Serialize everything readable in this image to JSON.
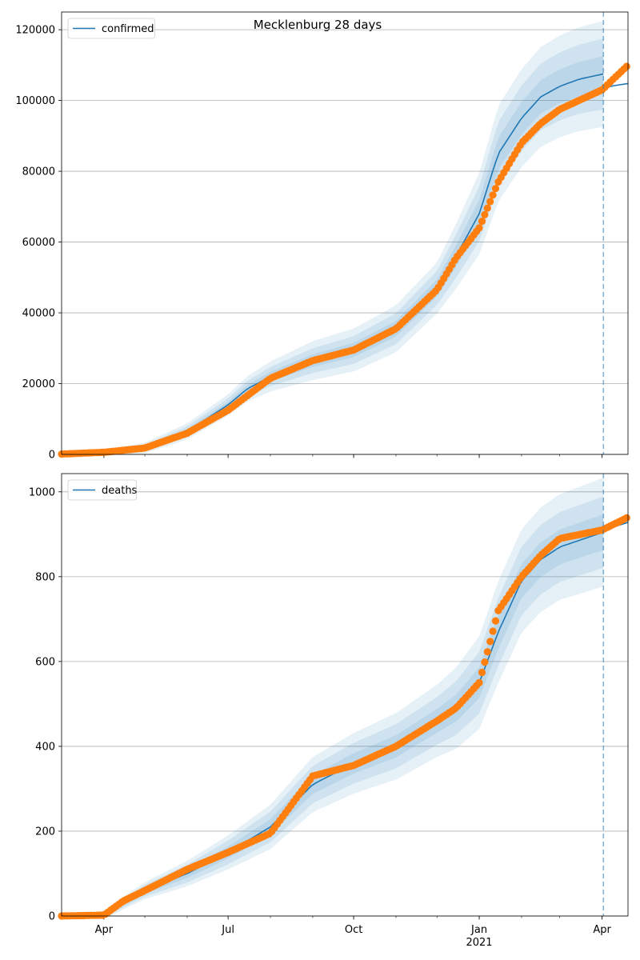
{
  "figure": {
    "title": "Mecklenburg 28 days"
  },
  "colors": {
    "model": "#1f77b4",
    "observed": "#ff7f0e",
    "band": "#1f77b4",
    "grid": "#b0b0b0"
  },
  "x_axis": {
    "start": "2020-03-01",
    "end": "2021-04-20",
    "ticks": [
      {
        "date": "2020-04-01",
        "label": "Apr",
        "sublabel": ""
      },
      {
        "date": "2020-07-01",
        "label": "Jul",
        "sublabel": ""
      },
      {
        "date": "2020-10-01",
        "label": "Oct",
        "sublabel": ""
      },
      {
        "date": "2021-01-01",
        "label": "Jan",
        "sublabel": "2021"
      },
      {
        "date": "2021-04-01",
        "label": "Apr",
        "sublabel": ""
      }
    ],
    "forecast_start": "2021-04-02"
  },
  "chart_data": [
    {
      "type": "line",
      "legend": "confirmed",
      "legend_position": "top-left",
      "grid": "horizontal",
      "ylim": [
        0,
        125000
      ],
      "yticks": [
        0,
        20000,
        40000,
        60000,
        80000,
        100000,
        120000
      ],
      "model": {
        "name": "confirmed",
        "x": [
          "2020-03-01",
          "2020-04-01",
          "2020-05-01",
          "2020-06-01",
          "2020-07-01",
          "2020-07-15",
          "2020-08-01",
          "2020-09-01",
          "2020-10-01",
          "2020-11-01",
          "2020-12-01",
          "2020-12-15",
          "2021-01-01",
          "2021-01-15",
          "2021-02-01",
          "2021-02-15",
          "2021-03-01",
          "2021-03-15",
          "2021-04-02",
          "2021-04-20"
        ],
        "y": [
          100,
          500,
          1800,
          6500,
          14000,
          18500,
          22000,
          26500,
          29500,
          35500,
          47000,
          56000,
          68000,
          85000,
          95000,
          101000,
          104000,
          106000,
          107500,
          108500
        ]
      },
      "band_half_widths": [
        {
          "date": "2020-03-01",
          "w": [
            0,
            0,
            0
          ]
        },
        {
          "date": "2020-07-01",
          "w": [
            900,
            1900,
            3000
          ]
        },
        {
          "date": "2020-09-01",
          "w": [
            1800,
            3500,
            5500
          ]
        },
        {
          "date": "2020-12-01",
          "w": [
            2400,
            4800,
            7200
          ]
        },
        {
          "date": "2021-01-15",
          "w": [
            4500,
            9000,
            13500
          ]
        },
        {
          "date": "2021-04-02",
          "w": [
            5000,
            10000,
            15000
          ]
        }
      ],
      "observed": {
        "name": "",
        "x": [
          "2020-03-01",
          "2020-04-01",
          "2020-05-01",
          "2020-06-01",
          "2020-07-01",
          "2020-08-01",
          "2020-09-01",
          "2020-10-01",
          "2020-11-01",
          "2020-12-01",
          "2020-12-15",
          "2021-01-01",
          "2021-01-15",
          "2021-02-01",
          "2021-02-15",
          "2021-03-01",
          "2021-03-15",
          "2021-04-01",
          "2021-04-20"
        ],
        "y": [
          100,
          600,
          1800,
          6000,
          12500,
          21500,
          26500,
          29500,
          35500,
          46500,
          55500,
          64000,
          77000,
          88000,
          93500,
          97500,
          100000,
          103000,
          110000
        ]
      },
      "forecast": {
        "x": [
          "2021-04-02",
          "2021-04-10",
          "2021-04-20"
        ],
        "y": [
          103500,
          104200,
          104800
        ]
      }
    },
    {
      "type": "line",
      "legend": "deaths",
      "legend_position": "top-left",
      "grid": "horizontal",
      "ylim": [
        0,
        1043
      ],
      "yticks": [
        0,
        200,
        400,
        600,
        800,
        1000
      ],
      "model": {
        "name": "deaths",
        "x": [
          "2020-03-01",
          "2020-04-01",
          "2020-04-15",
          "2020-05-01",
          "2020-06-01",
          "2020-07-01",
          "2020-08-01",
          "2020-09-01",
          "2020-10-01",
          "2020-11-01",
          "2020-12-01",
          "2020-12-15",
          "2021-01-01",
          "2021-01-15",
          "2021-02-01",
          "2021-02-15",
          "2021-03-01",
          "2021-04-02",
          "2021-04-20"
        ],
        "y": [
          0,
          2,
          30,
          60,
          100,
          150,
          210,
          310,
          360,
          400,
          460,
          490,
          550,
          670,
          790,
          840,
          870,
          905,
          925
        ]
      },
      "band_half_widths": [
        {
          "date": "2020-03-01",
          "w": [
            0,
            0,
            0
          ]
        },
        {
          "date": "2020-07-01",
          "w": [
            14,
            28,
            40
          ]
        },
        {
          "date": "2020-09-01",
          "w": [
            22,
            44,
            65
          ]
        },
        {
          "date": "2020-12-01",
          "w": [
            28,
            56,
            85
          ]
        },
        {
          "date": "2021-01-15",
          "w": [
            40,
            80,
            120
          ]
        },
        {
          "date": "2021-04-02",
          "w": [
            42,
            84,
            128
          ]
        }
      ],
      "observed": {
        "name": "",
        "x": [
          "2020-03-01",
          "2020-04-01",
          "2020-04-15",
          "2020-05-01",
          "2020-06-01",
          "2020-07-01",
          "2020-08-01",
          "2020-09-01",
          "2020-10-01",
          "2020-11-01",
          "2020-12-01",
          "2020-12-15",
          "2021-01-01",
          "2021-01-15",
          "2021-02-01",
          "2021-02-15",
          "2021-03-01",
          "2021-04-01",
          "2021-04-20"
        ],
        "y": [
          0,
          2,
          35,
          60,
          110,
          150,
          195,
          330,
          355,
          400,
          460,
          490,
          550,
          720,
          800,
          850,
          890,
          910,
          940
        ]
      },
      "forecast": {
        "x": [
          "2021-04-02",
          "2021-04-10",
          "2021-04-20"
        ],
        "y": [
          910,
          918,
          928
        ]
      }
    }
  ]
}
